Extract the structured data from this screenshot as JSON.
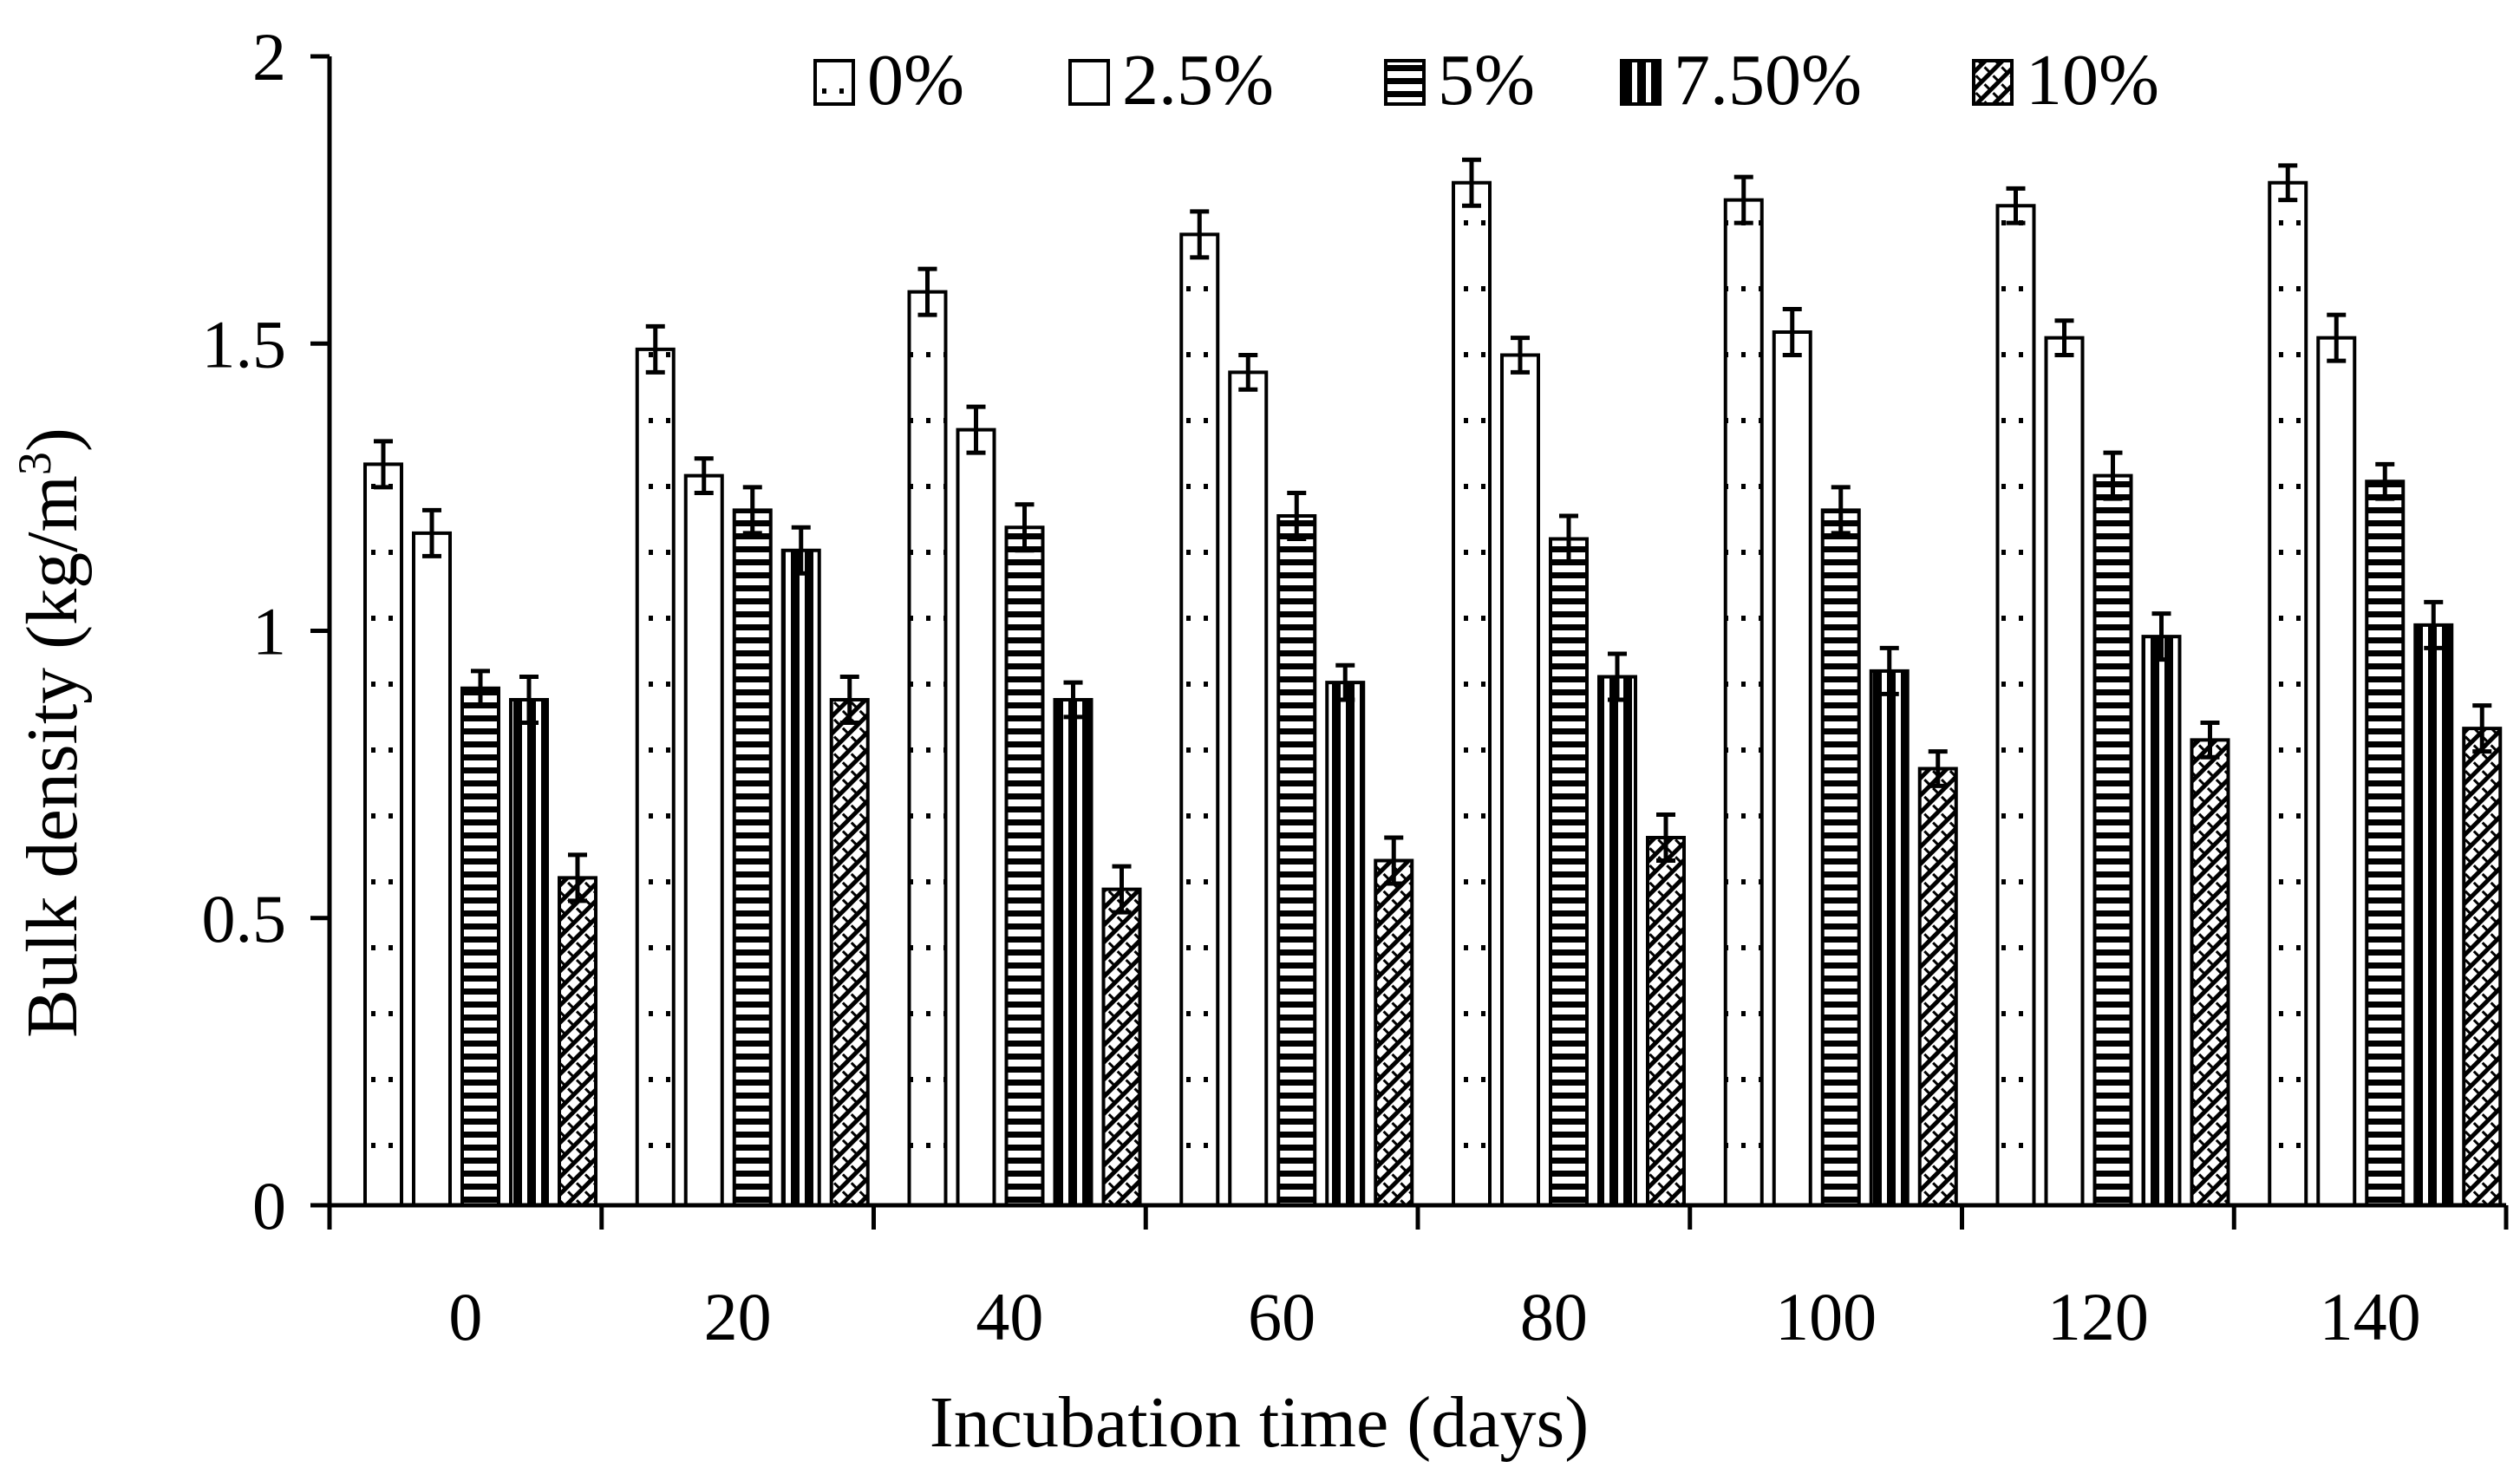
{
  "chart_data": {
    "type": "bar",
    "title": "",
    "xlabel": "Incubation time (days)",
    "ylabel": "Bulk density (kg/m",
    "ylabel_superscript": "3",
    "ylabel_close": ")",
    "ylim": [
      0,
      2
    ],
    "yticks": [
      0,
      0.5,
      1,
      1.5,
      2
    ],
    "ytick_labels": [
      "0",
      "0.5",
      "1",
      "1.5",
      "2"
    ],
    "grid": false,
    "legend_position": "top",
    "categories": [
      "0",
      "20",
      "40",
      "60",
      "80",
      "100",
      "120",
      "140"
    ],
    "series": [
      {
        "name": "0%",
        "pattern": "dots",
        "values": [
          1.29,
          1.49,
          1.59,
          1.69,
          1.78,
          1.75,
          1.74,
          1.78
        ],
        "errors": [
          0.04,
          0.04,
          0.04,
          0.04,
          0.04,
          0.04,
          0.03,
          0.03
        ]
      },
      {
        "name": "2.5%",
        "pattern": "blank",
        "values": [
          1.17,
          1.27,
          1.35,
          1.45,
          1.48,
          1.52,
          1.51,
          1.51
        ],
        "errors": [
          0.04,
          0.03,
          0.04,
          0.03,
          0.03,
          0.04,
          0.03,
          0.04
        ]
      },
      {
        "name": "5%",
        "pattern": "hlines",
        "values": [
          0.9,
          1.21,
          1.18,
          1.2,
          1.16,
          1.21,
          1.27,
          1.26
        ],
        "errors": [
          0.03,
          0.04,
          0.04,
          0.04,
          0.04,
          0.04,
          0.04,
          0.03
        ]
      },
      {
        "name": "7.50%",
        "pattern": "vstripes",
        "values": [
          0.88,
          1.14,
          0.88,
          0.91,
          0.92,
          0.93,
          0.99,
          1.01
        ],
        "errors": [
          0.04,
          0.04,
          0.03,
          0.03,
          0.04,
          0.04,
          0.04,
          0.04
        ]
      },
      {
        "name": "10%",
        "pattern": "diagonal",
        "values": [
          0.57,
          0.88,
          0.55,
          0.6,
          0.64,
          0.76,
          0.81,
          0.83
        ],
        "errors": [
          0.04,
          0.04,
          0.04,
          0.04,
          0.04,
          0.03,
          0.03,
          0.04
        ]
      }
    ]
  }
}
